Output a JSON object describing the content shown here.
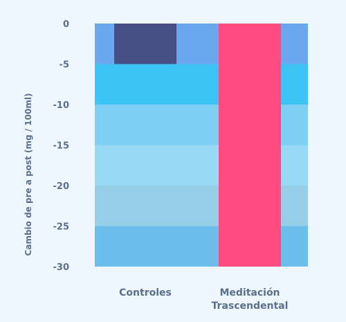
{
  "chart_data": {
    "type": "bar",
    "title": "",
    "xlabel": "",
    "ylabel": "Cambio de pre a post (mg / 100ml)",
    "categories": [
      "Controles",
      "Meditación\nTrascendental"
    ],
    "values": [
      -5,
      -30
    ],
    "ylim": [
      -30,
      0
    ],
    "yticks": [
      0,
      -5,
      -10,
      -15,
      -20,
      -25,
      -30
    ],
    "grid": false,
    "colors": {
      "bars": [
        "#474f85",
        "#ff4a82"
      ],
      "bands": [
        "#6aa7ee",
        "#3ec3f6",
        "#7ecff4",
        "#98daf5",
        "#98cfe8",
        "#6cbfea"
      ],
      "text": "#5b6f8a",
      "background": "#eef7fd"
    }
  }
}
